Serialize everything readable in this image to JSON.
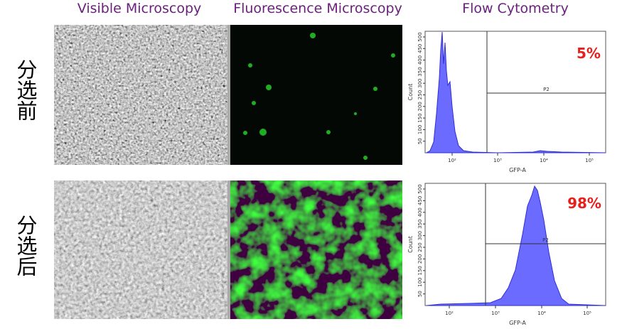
{
  "columns": [
    "Visible Microscopy",
    "Fluorescence Microscopy",
    "Flow Cytometry"
  ],
  "rows": [
    {
      "label": "分选前",
      "flow": {
        "percent": "5%",
        "gate": "P2",
        "ylabel": "Count",
        "xlabel": "GFP-A",
        "xticks": [
          "10²",
          "10³",
          "10⁴",
          "10⁵"
        ],
        "yticks": [
          "50",
          "100",
          "150",
          "200",
          "250",
          "300",
          "350",
          "400",
          "450",
          "500"
        ]
      }
    },
    {
      "label": "分选后",
      "flow": {
        "percent": "98%",
        "gate": "P2",
        "ylabel": "Count",
        "xlabel": "GFP-A",
        "xticks": [
          "10²",
          "10³",
          "10⁴",
          "10⁵"
        ],
        "yticks": [
          "50",
          "100",
          "150",
          "200",
          "250",
          "300",
          "350",
          "400",
          "450",
          "500"
        ]
      }
    }
  ]
}
